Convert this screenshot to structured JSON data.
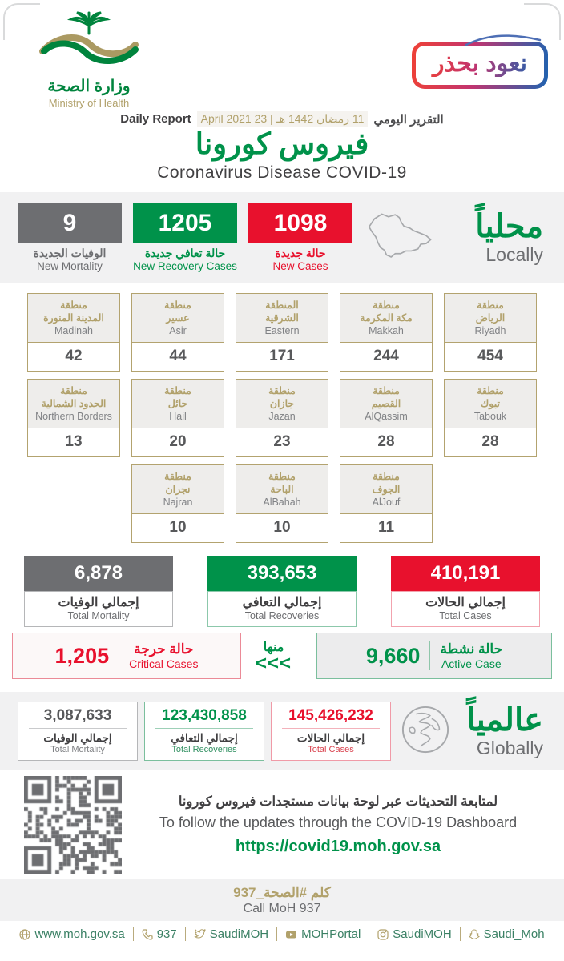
{
  "header": {
    "logo": {
      "arabic": "وزارة الصحة",
      "english": "Ministry of Health"
    },
    "badge_text": "نعود بحذر",
    "report_label_ar": "التقرير اليومي",
    "report_date": "11 رمضان 1442 هـ | 23 April 2021",
    "report_label_en": "Daily Report",
    "title_ar": "فيروس كورونا",
    "title_en": "Coronavirus Disease COVID-19"
  },
  "locally": {
    "heading_ar": "محلياً",
    "heading_en": "Locally",
    "stats": [
      {
        "value": "9",
        "label_ar": "الوفيات الجديدة",
        "label_en": "New Mortality"
      },
      {
        "value": "1205",
        "label_ar": "حالة تعافي جديدة",
        "label_en": "New Recovery Cases"
      },
      {
        "value": "1098",
        "label_ar": "حالة جديدة",
        "label_en": "New Cases"
      }
    ]
  },
  "regions": [
    {
      "ar": "منطقة\nالمدينة المنورة",
      "en": "Madinah",
      "value": "42"
    },
    {
      "ar": "منطقة\nعسير",
      "en": "Asir",
      "value": "44"
    },
    {
      "ar": "المنطقة\nالشرقية",
      "en": "Eastern",
      "value": "171"
    },
    {
      "ar": "منطقة\nمكة المكرمة",
      "en": "Makkah",
      "value": "244"
    },
    {
      "ar": "منطقة\nالرياض",
      "en": "Riyadh",
      "value": "454"
    },
    {
      "ar": "منطقة\nالحدود الشمالية",
      "en": "Northern Borders",
      "value": "13"
    },
    {
      "ar": "منطقة\nحائل",
      "en": "Hail",
      "value": "20"
    },
    {
      "ar": "منطقة\nجازان",
      "en": "Jazan",
      "value": "23"
    },
    {
      "ar": "منطقة\nالقصيم",
      "en": "AlQassim",
      "value": "28"
    },
    {
      "ar": "منطقة\nتبوك",
      "en": "Tabouk",
      "value": "28"
    },
    {
      "ar": "منطقة\nنجران",
      "en": "Najran",
      "value": "10"
    },
    {
      "ar": "منطقة\nالباحة",
      "en": "AlBahah",
      "value": "10"
    },
    {
      "ar": "منطقة\nالجوف",
      "en": "AlJouf",
      "value": "11"
    }
  ],
  "totals": [
    {
      "value": "6,878",
      "label_ar": "إجمالي الوفيات",
      "label_en": "Total Mortality"
    },
    {
      "value": "393,653",
      "label_ar": "إجمالي التعافي",
      "label_en": "Total Recoveries"
    },
    {
      "value": "410,191",
      "label_ar": "إجمالي الحالات",
      "label_en": "Total Cases"
    }
  ],
  "breakdown": {
    "critical": {
      "value": "1,205",
      "label_ar": "حالة حرجة",
      "label_en": "Critical Cases"
    },
    "of_which_ar": "منها",
    "arrows": "<<<",
    "active": {
      "value": "9,660",
      "label_ar": "حالة نشطة",
      "label_en": "Active Case"
    }
  },
  "globally": {
    "heading_ar": "عالمياً",
    "heading_en": "Globally",
    "stats": [
      {
        "value": "3,087,633",
        "label_ar": "إجمالي الوفيات",
        "label_en": "Total Mortality"
      },
      {
        "value": "123,430,858",
        "label_ar": "إجمالي التعافي",
        "label_en": "Total Recoveries"
      },
      {
        "value": "145,426,232",
        "label_ar": "إجمالي الحالات",
        "label_en": "Total Cases"
      }
    ]
  },
  "dashboard": {
    "text_ar": "لمتابعة التحديثات عبر لوحة بيانات مستجدات فيروس كورونا",
    "text_en": "To follow the updates through the COVID-19 Dashboard",
    "url": "https://covid19.moh.gov.sa"
  },
  "call": {
    "ar": "كلم #الصحة_937",
    "en": "Call MoH 937"
  },
  "footer": {
    "links": [
      {
        "icon": "globe-icon",
        "label": "www.moh.gov.sa"
      },
      {
        "icon": "phone-icon",
        "label": "937"
      },
      {
        "icon": "twitter-icon",
        "label": "SaudiMOH"
      },
      {
        "icon": "youtube-icon",
        "label": "MOHPortal"
      },
      {
        "icon": "instagram-icon",
        "label": "SaudiMOH"
      },
      {
        "icon": "snapchat-icon",
        "label": "Saudi_Moh"
      }
    ]
  },
  "colors": {
    "green": "#00924a",
    "red": "#e8112d",
    "gray": "#6d6e71",
    "tan": "#b1a16b"
  }
}
